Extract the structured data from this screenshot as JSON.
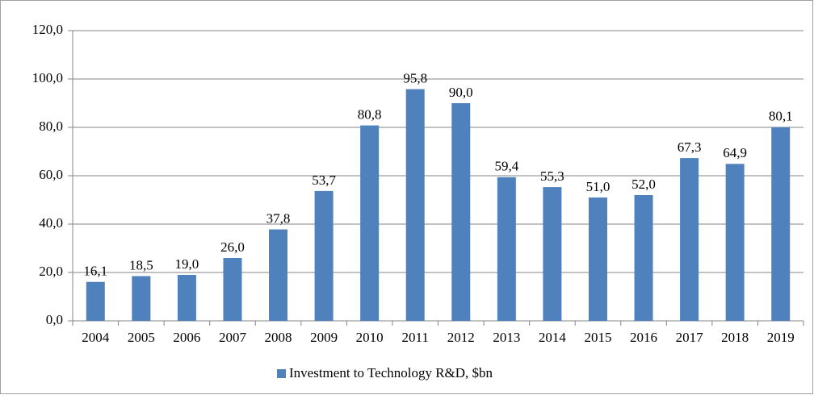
{
  "chart_data": {
    "type": "bar",
    "categories": [
      "2004",
      "2005",
      "2006",
      "2007",
      "2008",
      "2009",
      "2010",
      "2011",
      "2012",
      "2013",
      "2014",
      "2015",
      "2016",
      "2017",
      "2018",
      "2019"
    ],
    "series": [
      {
        "name": "Investment to Technology R&D, $bn",
        "color": "#4f81bd",
        "values": [
          16.1,
          18.5,
          19.0,
          26.0,
          37.8,
          53.7,
          80.8,
          95.8,
          90.0,
          59.4,
          55.3,
          51.0,
          52.0,
          67.3,
          64.9,
          80.1
        ],
        "value_labels": [
          "16,1",
          "18,5",
          "19,0",
          "26,0",
          "37,8",
          "53,7",
          "80,8",
          "95,8",
          "90,0",
          "59,4",
          "55,3",
          "51,0",
          "52,0",
          "67,3",
          "64,9",
          "80,1"
        ]
      }
    ],
    "ylim": [
      0,
      120
    ],
    "yticks": [
      {
        "value": 0,
        "label": "0,0"
      },
      {
        "value": 20,
        "label": "20,0"
      },
      {
        "value": 40,
        "label": "40,0"
      },
      {
        "value": 60,
        "label": "60,0"
      },
      {
        "value": 80,
        "label": "80,0"
      },
      {
        "value": 100,
        "label": "100,0"
      },
      {
        "value": 120,
        "label": "120,0"
      }
    ],
    "grid": true,
    "legend": "bottom"
  }
}
